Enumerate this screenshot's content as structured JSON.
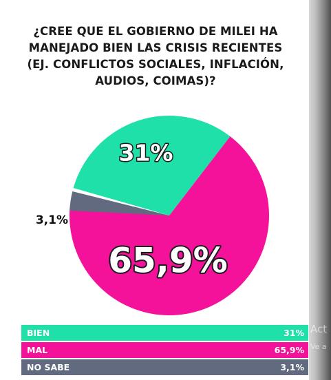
{
  "chart_data": {
    "type": "pie",
    "title": "¿CREE QUE EL GOBIERNO DE MILEI HA MANEJADO BIEN LAS CRISIS RECIENTES (EJ. CONFLICTOS SOCIALES, INFLACIÓN, AUDIOS, COIMAS)?",
    "title_lines": [
      "¿CREE QUE EL GOBIERNO DE MILEI HA",
      "MANEJADO BIEN LAS CRISIS RECIENTES",
      "(EJ. CONFLICTOS SOCIALES, INFLACIÓN,",
      "AUDIOS, COIMAS)?"
    ],
    "slices": [
      {
        "label": "BIEN",
        "value": 31,
        "display": "31%",
        "color": "#1fe0a8"
      },
      {
        "label": "MAL",
        "value": 65.9,
        "display": "65,9%",
        "color": "#f5129b"
      },
      {
        "label": "NO SABE",
        "value": 3.1,
        "display": "3,1%",
        "color": "#626a80"
      }
    ],
    "legend_placement": "bottom"
  },
  "overlay": {
    "watermark_line1": "Act",
    "watermark_line2": "Ve a"
  }
}
